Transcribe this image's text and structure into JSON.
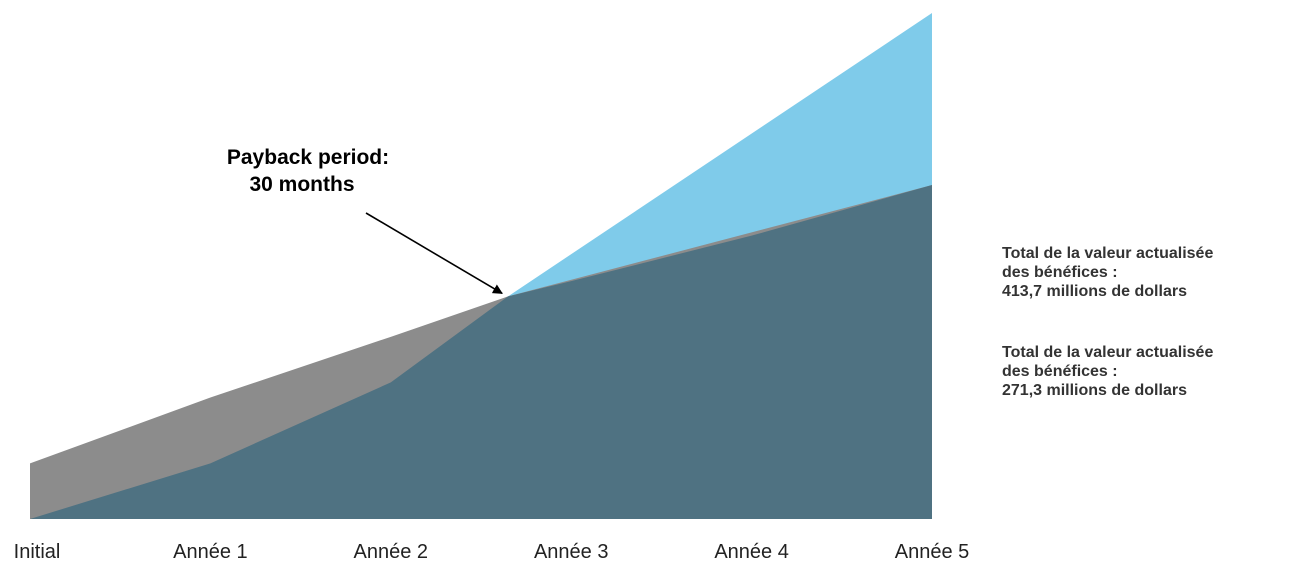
{
  "chart_data": {
    "type": "area",
    "categories": [
      "Initial",
      "Année 1",
      "Année 2",
      "Année 3",
      "Année 4",
      "Année 5"
    ],
    "ylim": [
      0,
      100
    ],
    "series": [
      {
        "key": "upper_benefits",
        "color": "#7fcbea",
        "points": [
          [
            0,
            0
          ],
          [
            2.65,
            44
          ],
          [
            5,
            100
          ]
        ]
      },
      {
        "key": "costs",
        "color": "#8c8c8c",
        "points": [
          [
            0,
            11
          ],
          [
            1,
            24
          ],
          [
            2,
            36
          ],
          [
            2.65,
            44
          ],
          [
            5,
            66
          ]
        ]
      },
      {
        "key": "lower_benefits",
        "color": "#4f7282",
        "points": [
          [
            0,
            0
          ],
          [
            1,
            11
          ],
          [
            2,
            27
          ],
          [
            2.65,
            44
          ],
          [
            3,
            47
          ],
          [
            4,
            56
          ],
          [
            5,
            66
          ]
        ]
      }
    ],
    "annotation": {
      "lines": [
        "Payback period:",
        "30 months"
      ],
      "arrow_target": [
        2.65,
        44
      ]
    },
    "side_notes": [
      {
        "lines": [
          "Total de la valeur actualisée",
          "des bénéfices :",
          "413,7 millions de dollars"
        ]
      },
      {
        "lines": [
          "Total de la valeur actualisée",
          "des bénéfices :",
          "271,3 millions de dollars"
        ]
      }
    ]
  }
}
